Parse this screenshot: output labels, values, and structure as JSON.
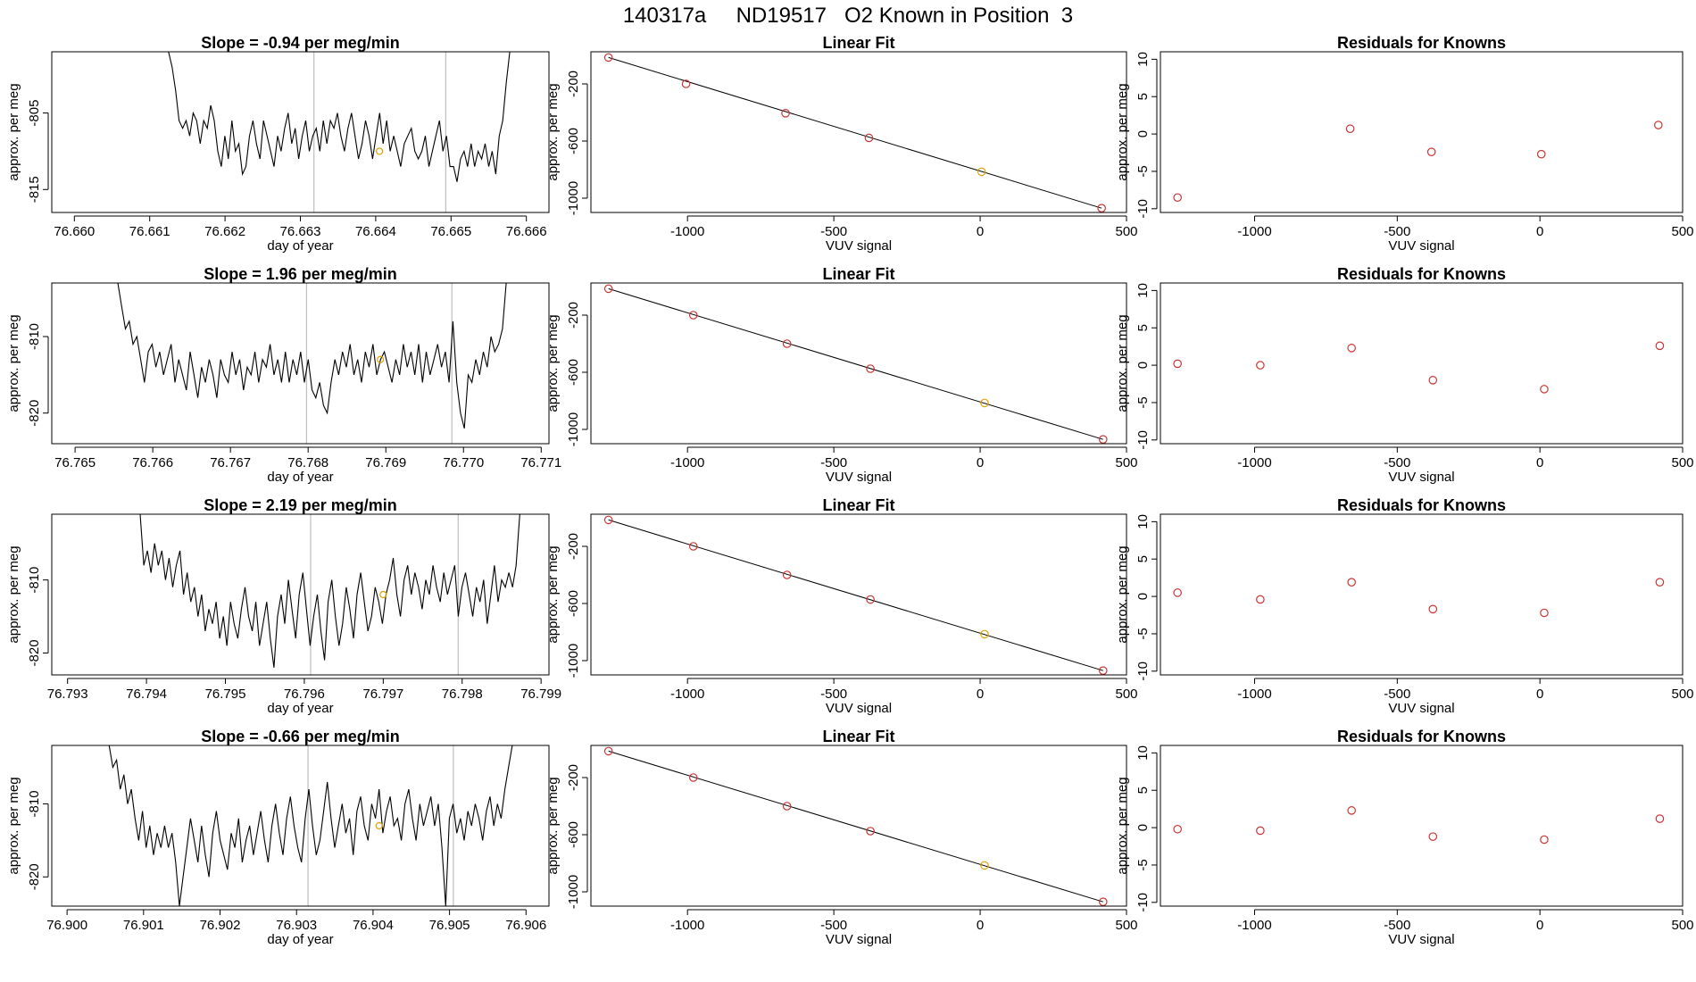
{
  "figure": {
    "title": "140317a     ND19517   O2 Known in Position  3"
  },
  "colors": {
    "trace": "#000000",
    "known_point": "#cd3333",
    "highlight_point": "#e69f00",
    "marker_line": "#bebebe",
    "axis": "#000000"
  },
  "chart_data": [
    {
      "type": "line",
      "row": 0,
      "col": 0,
      "title": "Slope =  -0.94  per meg/min",
      "xlabel": "day of year",
      "ylabel": "approx. per meg",
      "xlim": [
        76.6597,
        76.6663
      ],
      "ylim": [
        -818,
        -797
      ],
      "xticks": [
        76.66,
        76.661,
        76.662,
        76.663,
        76.664,
        76.665,
        76.666
      ],
      "xtick_labels": [
        "76.660",
        "76.661",
        "76.662",
        "76.663",
        "76.664",
        "76.665",
        "76.666"
      ],
      "yticks": [
        -805,
        -815
      ],
      "ytick_labels": [
        "-805",
        "-815"
      ],
      "vlines": [
        76.66318,
        76.66493
      ],
      "trace_start": 76.66125,
      "trace_end": 76.66578,
      "trace": [
        -797,
        -799,
        -802,
        -806,
        -807,
        -806,
        -808,
        -805,
        -806,
        -809,
        -806,
        -807,
        -804,
        -806,
        -810,
        -812,
        -808,
        -811,
        -806,
        -810,
        -809,
        -813,
        -812,
        -808,
        -806,
        -809,
        -811,
        -806,
        -808,
        -810,
        -812,
        -808,
        -810,
        -807,
        -805,
        -809,
        -807,
        -811,
        -808,
        -806,
        -810,
        -808,
        -807,
        -810,
        -806,
        -809,
        -806,
        -807,
        -805,
        -808,
        -810,
        -807,
        -805,
        -808,
        -811,
        -809,
        -806,
        -808,
        -811,
        -808,
        -805,
        -809,
        -806,
        -810,
        -808,
        -810,
        -812,
        -809,
        -808,
        -807,
        -810,
        -811,
        -810,
        -808,
        -812,
        -810,
        -808,
        -806,
        -810,
        -808,
        -812,
        -812,
        -814,
        -811,
        -810,
        -812,
        -809,
        -812,
        -810,
        -811,
        -809,
        -812,
        -810,
        -813,
        -808,
        -806,
        -801,
        -797
      ],
      "highlight_point": [
        76.66405,
        -810
      ]
    },
    {
      "type": "scatter",
      "row": 0,
      "col": 1,
      "title": "Linear Fit",
      "xlabel": "VUV signal",
      "ylabel": "approx. per meg",
      "xlim": [
        -1330,
        500
      ],
      "ylim": [
        -1100,
        25
      ],
      "xticks": [
        -1000,
        -500,
        0,
        500
      ],
      "xtick_labels": [
        "-1000",
        "-500",
        "0",
        "500"
      ],
      "yticks": [
        -200,
        -600,
        -1000
      ],
      "ytick_labels": [
        "-200",
        "-600",
        "-1000"
      ],
      "x": [
        -1270,
        -1005,
        -665,
        -380,
        5,
        415
      ],
      "y": [
        -15,
        -200,
        -405,
        -578,
        -815,
        -1070
      ],
      "fit_line": [
        [
          -1270,
          -15
        ],
        [
          415,
          -1070
        ]
      ],
      "highlight_index": 4
    },
    {
      "type": "scatter",
      "row": 0,
      "col": 2,
      "title": "Residuals for Knowns",
      "xlabel": "VUV signal",
      "ylabel": "approx. per meg",
      "xlim": [
        -1330,
        500
      ],
      "ylim": [
        -10.5,
        11
      ],
      "xticks": [
        -1000,
        -500,
        0,
        500
      ],
      "xtick_labels": [
        "-1000",
        "-500",
        "0",
        "500"
      ],
      "yticks": [
        10,
        5,
        0,
        -5,
        -10
      ],
      "ytick_labels": [
        "10",
        "5",
        "0",
        "-5",
        "-10"
      ],
      "x": [
        -1270,
        -665,
        -380,
        5,
        415
      ],
      "y": [
        -8.5,
        0.7,
        -2.4,
        -2.7,
        1.2
      ]
    },
    {
      "type": "line",
      "row": 1,
      "col": 0,
      "title": "Slope =  1.96  per meg/min",
      "xlabel": "day of year",
      "ylabel": "approx. per meg",
      "xlim": [
        76.7647,
        76.7711
      ],
      "ylim": [
        -824,
        -803
      ],
      "xticks": [
        76.765,
        76.766,
        76.767,
        76.768,
        76.769,
        76.77,
        76.771
      ],
      "xtick_labels": [
        "76.765",
        "76.766",
        "76.767",
        "76.768",
        "76.769",
        "76.770",
        "76.771"
      ],
      "yticks": [
        -810,
        -820
      ],
      "ytick_labels": [
        "-810",
        "-820"
      ],
      "vlines": [
        76.76798,
        76.76985
      ],
      "trace_start": 76.76555,
      "trace_end": 76.77055,
      "trace": [
        -803,
        -806,
        -809,
        -808,
        -811,
        -810,
        -813,
        -816,
        -812,
        -811,
        -814,
        -812,
        -815,
        -813,
        -811,
        -816,
        -813,
        -815,
        -817,
        -812,
        -815,
        -818,
        -814,
        -816,
        -813,
        -815,
        -818,
        -813,
        -815,
        -816,
        -812,
        -815,
        -813,
        -817,
        -814,
        -815,
        -812,
        -816,
        -813,
        -814,
        -811,
        -815,
        -813,
        -816,
        -812,
        -816,
        -813,
        -815,
        -812,
        -816,
        -813,
        -817,
        -818,
        -816,
        -819,
        -820,
        -816,
        -813,
        -815,
        -812,
        -814,
        -811,
        -815,
        -813,
        -816,
        -812,
        -814,
        -811,
        -815,
        -813,
        -812,
        -814,
        -816,
        -813,
        -815,
        -811,
        -814,
        -812,
        -815,
        -811,
        -816,
        -812,
        -815,
        -813,
        -811,
        -814,
        -812,
        -816,
        -808,
        -816,
        -820,
        -822,
        -815,
        -816,
        -813,
        -815,
        -812,
        -814,
        -810,
        -812,
        -811,
        -809,
        -803
      ],
      "highlight_point": [
        76.76893,
        -813
      ]
    },
    {
      "type": "scatter",
      "row": 1,
      "col": 1,
      "title": "Linear Fit",
      "xlabel": "VUV signal",
      "ylabel": "approx. per meg",
      "xlim": [
        -1330,
        500
      ],
      "ylim": [
        -1100,
        25
      ],
      "xticks": [
        -1000,
        -500,
        0,
        500
      ],
      "xtick_labels": [
        "-1000",
        "-500",
        "0",
        "500"
      ],
      "yticks": [
        -200,
        -600,
        -1000
      ],
      "ytick_labels": [
        "-200",
        "-600",
        "-1000"
      ],
      "x": [
        -1270,
        -980,
        -660,
        -375,
        15,
        420
      ],
      "y": [
        -15,
        -200,
        -400,
        -575,
        -815,
        -1070
      ],
      "fit_line": [
        [
          -1270,
          -15
        ],
        [
          420,
          -1070
        ]
      ],
      "highlight_index": 4
    },
    {
      "type": "scatter",
      "row": 1,
      "col": 2,
      "title": "Residuals for Knowns",
      "xlabel": "VUV signal",
      "ylabel": "approx. per meg",
      "xlim": [
        -1330,
        500
      ],
      "ylim": [
        -10.5,
        11
      ],
      "xticks": [
        -1000,
        -500,
        0,
        500
      ],
      "xtick_labels": [
        "-1000",
        "-500",
        "0",
        "500"
      ],
      "yticks": [
        10,
        5,
        0,
        -5,
        -10
      ],
      "ytick_labels": [
        "10",
        "5",
        "0",
        "-5",
        "-10"
      ],
      "x": [
        -1270,
        -980,
        -660,
        -375,
        15,
        420
      ],
      "y": [
        0.2,
        0.0,
        2.3,
        -2.0,
        -3.2,
        2.6
      ]
    },
    {
      "type": "line",
      "row": 2,
      "col": 0,
      "title": "Slope =  2.19  per meg/min",
      "xlabel": "day of year",
      "ylabel": "approx. per meg",
      "xlim": [
        76.7928,
        76.7991
      ],
      "ylim": [
        -823,
        -801
      ],
      "xticks": [
        76.793,
        76.794,
        76.795,
        76.796,
        76.797,
        76.798,
        76.799
      ],
      "xtick_labels": [
        "76.793",
        "76.794",
        "76.795",
        "76.796",
        "76.797",
        "76.798",
        "76.799"
      ],
      "yticks": [
        -810,
        -820
      ],
      "ytick_labels": [
        "-810",
        "-820"
      ],
      "vlines": [
        76.79608,
        76.79795
      ],
      "trace_start": 76.79392,
      "trace_end": 76.79873,
      "trace": [
        -801,
        -808,
        -806,
        -809,
        -805,
        -808,
        -806,
        -810,
        -807,
        -811,
        -808,
        -806,
        -812,
        -809,
        -813,
        -811,
        -815,
        -812,
        -817,
        -814,
        -816,
        -813,
        -818,
        -815,
        -819,
        -813,
        -816,
        -818,
        -814,
        -811,
        -815,
        -817,
        -813,
        -819,
        -816,
        -813,
        -818,
        -822,
        -815,
        -812,
        -816,
        -810,
        -814,
        -818,
        -812,
        -809,
        -814,
        -819,
        -815,
        -812,
        -817,
        -821,
        -813,
        -810,
        -815,
        -819,
        -816,
        -811,
        -814,
        -818,
        -812,
        -809,
        -813,
        -817,
        -815,
        -811,
        -813,
        -816,
        -812,
        -810,
        -807,
        -812,
        -815,
        -810,
        -808,
        -812,
        -809,
        -811,
        -814,
        -810,
        -812,
        -808,
        -811,
        -813,
        -809,
        -812,
        -810,
        -808,
        -815,
        -811,
        -809,
        -812,
        -815,
        -811,
        -813,
        -810,
        -816,
        -812,
        -808,
        -813,
        -810,
        -811,
        -809,
        -811,
        -808,
        -801
      ],
      "highlight_point": [
        76.797,
        -812
      ]
    },
    {
      "type": "scatter",
      "row": 2,
      "col": 1,
      "title": "Linear Fit",
      "xlabel": "VUV signal",
      "ylabel": "approx. per meg",
      "xlim": [
        -1330,
        500
      ],
      "ylim": [
        -1100,
        25
      ],
      "xticks": [
        -1000,
        -500,
        0,
        500
      ],
      "xtick_labels": [
        "-1000",
        "-500",
        "0",
        "500"
      ],
      "yticks": [
        -200,
        -600,
        -1000
      ],
      "ytick_labels": [
        "-200",
        "-600",
        "-1000"
      ],
      "x": [
        -1270,
        -980,
        -660,
        -375,
        15,
        420
      ],
      "y": [
        -15,
        -200,
        -400,
        -572,
        -815,
        -1070
      ],
      "fit_line": [
        [
          -1270,
          -15
        ],
        [
          420,
          -1070
        ]
      ],
      "highlight_index": 4
    },
    {
      "type": "scatter",
      "row": 2,
      "col": 2,
      "title": "Residuals for Knowns",
      "xlabel": "VUV signal",
      "ylabel": "approx. per meg",
      "xlim": [
        -1330,
        500
      ],
      "ylim": [
        -10.5,
        11
      ],
      "xticks": [
        -1000,
        -500,
        0,
        500
      ],
      "xtick_labels": [
        "-1000",
        "-500",
        "0",
        "500"
      ],
      "yticks": [
        10,
        5,
        0,
        -5,
        -10
      ],
      "ytick_labels": [
        "10",
        "5",
        "0",
        "-5",
        "-10"
      ],
      "x": [
        -1270,
        -980,
        -660,
        -375,
        15,
        420
      ],
      "y": [
        0.5,
        -0.4,
        1.9,
        -1.7,
        -2.2,
        1.9
      ]
    },
    {
      "type": "line",
      "row": 3,
      "col": 0,
      "title": "Slope =  -0.66  per meg/min",
      "xlabel": "day of year",
      "ylabel": "approx. per meg",
      "xlim": [
        76.8998,
        76.9063
      ],
      "ylim": [
        -824,
        -802
      ],
      "xticks": [
        76.9,
        76.901,
        76.902,
        76.903,
        76.904,
        76.905,
        76.906
      ],
      "xtick_labels": [
        "76.900",
        "76.901",
        "76.902",
        "76.903",
        "76.904",
        "76.905",
        "76.906"
      ],
      "yticks": [
        -810,
        -820
      ],
      "ytick_labels": [
        "-810",
        "-820"
      ],
      "vlines": [
        76.90315,
        76.90505
      ],
      "trace_start": 76.90055,
      "trace_end": 76.90582,
      "trace": [
        -802,
        -805,
        -804,
        -808,
        -806,
        -810,
        -808,
        -812,
        -815,
        -811,
        -816,
        -813,
        -817,
        -814,
        -816,
        -813,
        -816,
        -814,
        -818,
        -824,
        -820,
        -816,
        -812,
        -815,
        -818,
        -813,
        -817,
        -820,
        -814,
        -811,
        -815,
        -817,
        -819,
        -814,
        -816,
        -812,
        -818,
        -815,
        -813,
        -817,
        -814,
        -811,
        -815,
        -818,
        -813,
        -810,
        -814,
        -817,
        -812,
        -809,
        -813,
        -816,
        -818,
        -812,
        -808,
        -813,
        -817,
        -815,
        -811,
        -807,
        -812,
        -816,
        -813,
        -810,
        -814,
        -812,
        -817,
        -811,
        -809,
        -813,
        -815,
        -810,
        -812,
        -808,
        -814,
        -811,
        -809,
        -813,
        -812,
        -815,
        -810,
        -808,
        -812,
        -815,
        -810,
        -813,
        -811,
        -809,
        -813,
        -810,
        -816,
        -824,
        -812,
        -810,
        -814,
        -812,
        -815,
        -811,
        -813,
        -810,
        -812,
        -815,
        -811,
        -809,
        -813,
        -810,
        -812,
        -808,
        -805,
        -802
      ],
      "highlight_point": [
        76.90408,
        -813
      ]
    },
    {
      "type": "scatter",
      "row": 3,
      "col": 1,
      "title": "Linear Fit",
      "xlabel": "VUV signal",
      "ylabel": "approx. per meg",
      "xlim": [
        -1330,
        500
      ],
      "ylim": [
        -1100,
        25
      ],
      "xticks": [
        -1000,
        -500,
        0,
        500
      ],
      "xtick_labels": [
        "-1000",
        "-500",
        "0",
        "500"
      ],
      "yticks": [
        -200,
        -600,
        -1000
      ],
      "ytick_labels": [
        "-200",
        "-600",
        "-1000"
      ],
      "x": [
        -1270,
        -980,
        -660,
        -375,
        15,
        420
      ],
      "y": [
        -15,
        -200,
        -400,
        -575,
        -815,
        -1070
      ],
      "fit_line": [
        [
          -1270,
          -15
        ],
        [
          420,
          -1070
        ]
      ],
      "highlight_index": 4
    },
    {
      "type": "scatter",
      "row": 3,
      "col": 2,
      "title": "Residuals for Knowns",
      "xlabel": "VUV signal",
      "ylabel": "approx. per meg",
      "xlim": [
        -1330,
        500
      ],
      "ylim": [
        -10.5,
        11
      ],
      "xticks": [
        -1000,
        -500,
        0,
        500
      ],
      "xtick_labels": [
        "-1000",
        "-500",
        "0",
        "500"
      ],
      "yticks": [
        10,
        5,
        0,
        -5,
        -10
      ],
      "ytick_labels": [
        "10",
        "5",
        "0",
        "-5",
        "-10"
      ],
      "x": [
        -1270,
        -980,
        -660,
        -375,
        15,
        420
      ],
      "y": [
        -0.2,
        -0.4,
        2.3,
        -1.2,
        -1.6,
        1.2
      ]
    }
  ]
}
